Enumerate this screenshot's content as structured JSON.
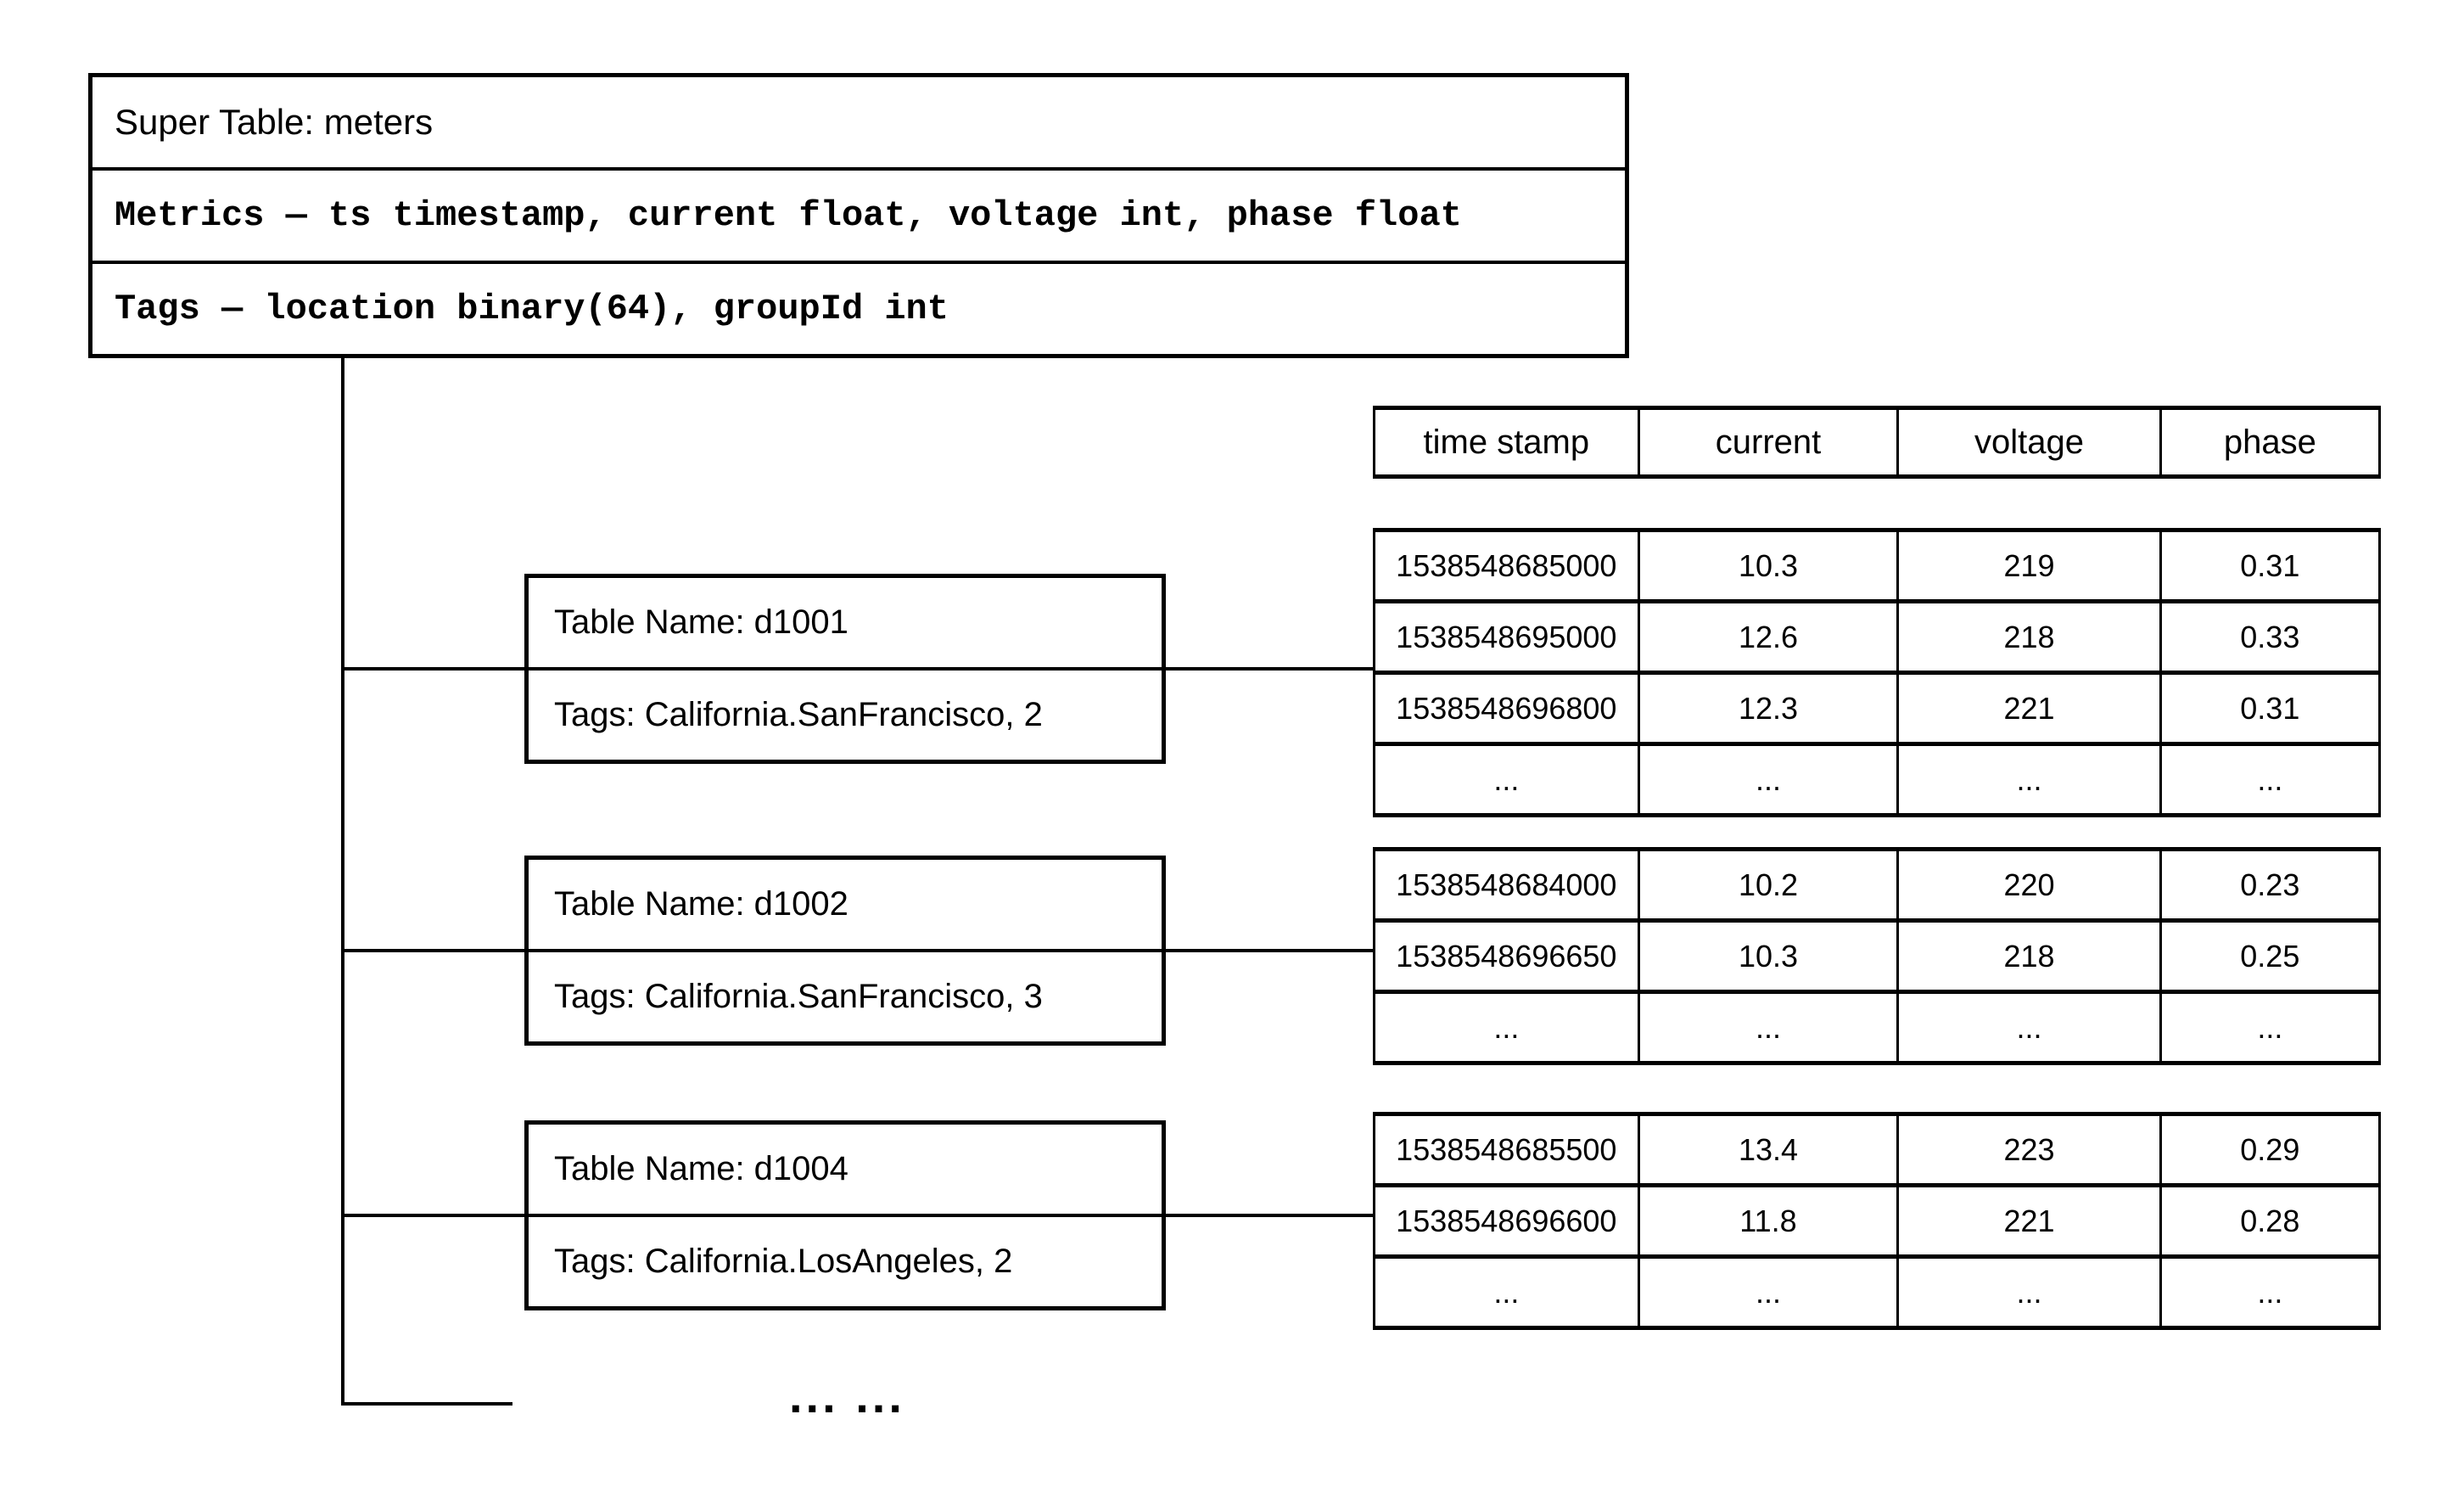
{
  "super_table": {
    "title": "Super Table: meters",
    "metrics": "Metrics — ts timestamp, current float, voltage int, phase float",
    "tags": "Tags — location binary(64), groupId int"
  },
  "data_columns": [
    "time stamp",
    "current",
    "voltage",
    "phase"
  ],
  "subtables": [
    {
      "name": "Table Name: d1001",
      "tags": "Tags: California.SanFrancisco, 2",
      "rows": [
        [
          "1538548685000",
          "10.3",
          "219",
          "0.31"
        ],
        [
          "1538548695000",
          "12.6",
          "218",
          "0.33"
        ],
        [
          "1538548696800",
          "12.3",
          "221",
          "0.31"
        ],
        [
          "...",
          "...",
          "...",
          "..."
        ]
      ]
    },
    {
      "name": "Table Name: d1002",
      "tags": "Tags: California.SanFrancisco, 3",
      "rows": [
        [
          "1538548684000",
          "10.2",
          "220",
          "0.23"
        ],
        [
          "1538548696650",
          "10.3",
          "218",
          "0.25"
        ],
        [
          "...",
          "...",
          "...",
          "..."
        ]
      ]
    },
    {
      "name": "Table Name: d1004",
      "tags": "Tags: California.LosAngeles, 2",
      "rows": [
        [
          "1538548685500",
          "13.4",
          "223",
          "0.29"
        ],
        [
          "1538548696600",
          "11.8",
          "221",
          "0.28"
        ],
        [
          "...",
          "...",
          "...",
          "..."
        ]
      ]
    }
  ],
  "more_indicator": "... ..."
}
